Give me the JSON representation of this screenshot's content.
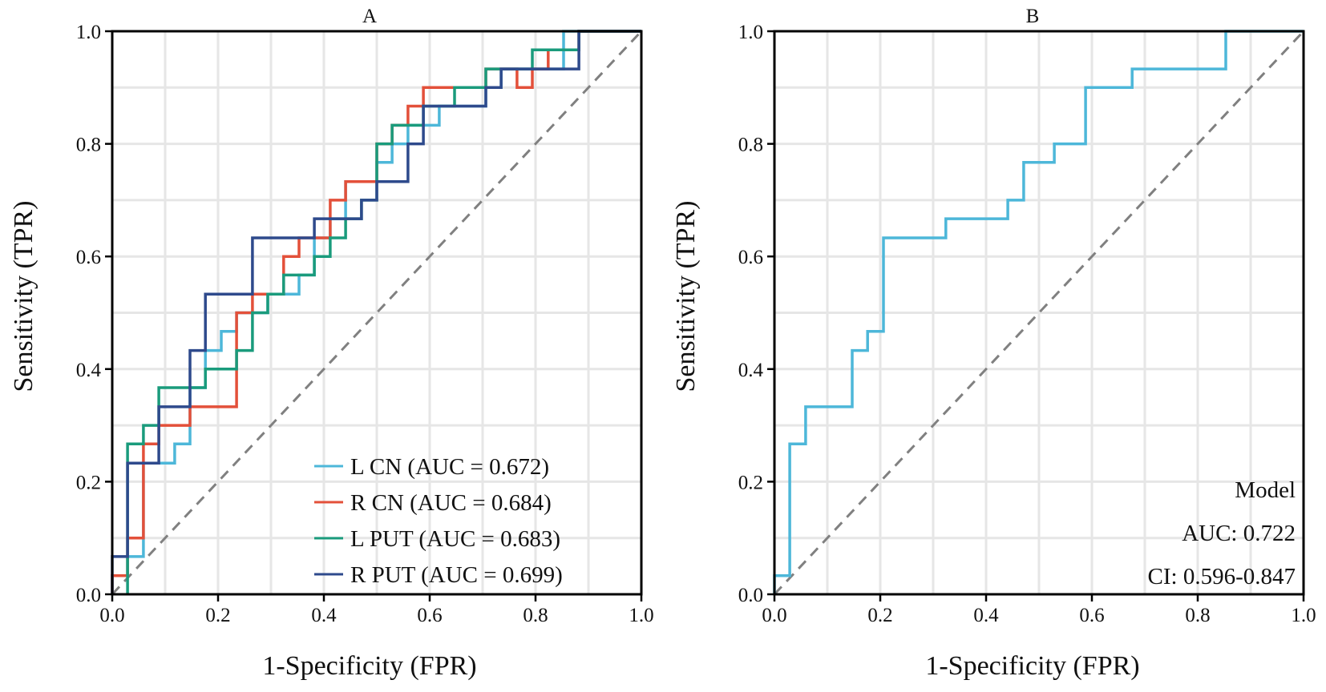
{
  "chart_data": [
    {
      "type": "line",
      "panel": "A",
      "title": "A",
      "xlabel": "1-Specificity (FPR)",
      "ylabel": "Sensitivity (TPR)",
      "xlim": [
        0,
        1
      ],
      "ylim": [
        0,
        1
      ],
      "xticks": [
        "0.0",
        "0.2",
        "0.4",
        "0.6",
        "0.8",
        "1.0"
      ],
      "yticks": [
        "0.0",
        "0.2",
        "0.4",
        "0.6",
        "0.8",
        "1.0"
      ],
      "grid": true,
      "legend_position": "bottom-right",
      "reference_line": "diagonal-dashed",
      "series": [
        {
          "name": "L CN",
          "label": "L CN (AUC = 0.672)",
          "auc": 0.672,
          "color": "#4DB7D9",
          "points": [
            [
              0,
              0
            ],
            [
              0,
              0.033
            ],
            [
              0.029,
              0.033
            ],
            [
              0.029,
              0.067
            ],
            [
              0.059,
              0.067
            ],
            [
              0.059,
              0.233
            ],
            [
              0.118,
              0.233
            ],
            [
              0.118,
              0.267
            ],
            [
              0.147,
              0.267
            ],
            [
              0.147,
              0.367
            ],
            [
              0.176,
              0.367
            ],
            [
              0.176,
              0.433
            ],
            [
              0.206,
              0.433
            ],
            [
              0.206,
              0.467
            ],
            [
              0.235,
              0.467
            ],
            [
              0.235,
              0.5
            ],
            [
              0.294,
              0.5
            ],
            [
              0.294,
              0.533
            ],
            [
              0.353,
              0.533
            ],
            [
              0.353,
              0.567
            ],
            [
              0.382,
              0.567
            ],
            [
              0.382,
              0.633
            ],
            [
              0.412,
              0.633
            ],
            [
              0.412,
              0.667
            ],
            [
              0.441,
              0.667
            ],
            [
              0.441,
              0.733
            ],
            [
              0.5,
              0.733
            ],
            [
              0.5,
              0.767
            ],
            [
              0.529,
              0.767
            ],
            [
              0.529,
              0.8
            ],
            [
              0.559,
              0.8
            ],
            [
              0.559,
              0.833
            ],
            [
              0.618,
              0.833
            ],
            [
              0.618,
              0.867
            ],
            [
              0.706,
              0.867
            ],
            [
              0.706,
              0.9
            ],
            [
              0.735,
              0.9
            ],
            [
              0.735,
              0.933
            ],
            [
              0.853,
              0.933
            ],
            [
              0.853,
              1.0
            ],
            [
              1.0,
              1.0
            ]
          ]
        },
        {
          "name": "R CN",
          "label": "R CN (AUC = 0.684)",
          "auc": 0.684,
          "color": "#E3503A",
          "points": [
            [
              0,
              0
            ],
            [
              0,
              0.033
            ],
            [
              0.029,
              0.033
            ],
            [
              0.029,
              0.1
            ],
            [
              0.059,
              0.1
            ],
            [
              0.059,
              0.267
            ],
            [
              0.088,
              0.267
            ],
            [
              0.088,
              0.3
            ],
            [
              0.147,
              0.3
            ],
            [
              0.147,
              0.333
            ],
            [
              0.235,
              0.333
            ],
            [
              0.235,
              0.5
            ],
            [
              0.265,
              0.5
            ],
            [
              0.265,
              0.533
            ],
            [
              0.324,
              0.533
            ],
            [
              0.324,
              0.6
            ],
            [
              0.353,
              0.6
            ],
            [
              0.353,
              0.633
            ],
            [
              0.412,
              0.633
            ],
            [
              0.412,
              0.7
            ],
            [
              0.441,
              0.7
            ],
            [
              0.441,
              0.733
            ],
            [
              0.5,
              0.733
            ],
            [
              0.5,
              0.8
            ],
            [
              0.529,
              0.8
            ],
            [
              0.529,
              0.833
            ],
            [
              0.559,
              0.833
            ],
            [
              0.559,
              0.867
            ],
            [
              0.588,
              0.867
            ],
            [
              0.588,
              0.9
            ],
            [
              0.706,
              0.9
            ],
            [
              0.706,
              0.933
            ],
            [
              0.765,
              0.933
            ],
            [
              0.765,
              0.9
            ],
            [
              0.794,
              0.9
            ],
            [
              0.794,
              0.933
            ],
            [
              0.824,
              0.933
            ],
            [
              0.824,
              0.967
            ],
            [
              0.882,
              0.967
            ],
            [
              0.882,
              1.0
            ],
            [
              1.0,
              1.0
            ]
          ]
        },
        {
          "name": "L PUT",
          "label": "L PUT (AUC = 0.683)",
          "auc": 0.683,
          "color": "#1A9B7C",
          "points": [
            [
              0.029,
              0
            ],
            [
              0.029,
              0.267
            ],
            [
              0.059,
              0.267
            ],
            [
              0.059,
              0.3
            ],
            [
              0.088,
              0.3
            ],
            [
              0.088,
              0.367
            ],
            [
              0.176,
              0.367
            ],
            [
              0.176,
              0.4
            ],
            [
              0.235,
              0.4
            ],
            [
              0.235,
              0.433
            ],
            [
              0.265,
              0.433
            ],
            [
              0.265,
              0.5
            ],
            [
              0.294,
              0.5
            ],
            [
              0.294,
              0.533
            ],
            [
              0.324,
              0.533
            ],
            [
              0.324,
              0.567
            ],
            [
              0.382,
              0.567
            ],
            [
              0.382,
              0.6
            ],
            [
              0.412,
              0.6
            ],
            [
              0.412,
              0.633
            ],
            [
              0.441,
              0.633
            ],
            [
              0.441,
              0.667
            ],
            [
              0.471,
              0.667
            ],
            [
              0.471,
              0.7
            ],
            [
              0.5,
              0.7
            ],
            [
              0.5,
              0.8
            ],
            [
              0.529,
              0.8
            ],
            [
              0.529,
              0.833
            ],
            [
              0.588,
              0.833
            ],
            [
              0.588,
              0.867
            ],
            [
              0.647,
              0.867
            ],
            [
              0.647,
              0.9
            ],
            [
              0.706,
              0.9
            ],
            [
              0.706,
              0.933
            ],
            [
              0.794,
              0.933
            ],
            [
              0.794,
              0.967
            ],
            [
              0.882,
              0.967
            ],
            [
              0.882,
              1.0
            ],
            [
              1.0,
              1.0
            ]
          ]
        },
        {
          "name": "R PUT",
          "label": "R PUT (AUC = 0.699)",
          "auc": 0.699,
          "color": "#2E4A8C",
          "points": [
            [
              0,
              0
            ],
            [
              0,
              0.067
            ],
            [
              0.029,
              0.067
            ],
            [
              0.029,
              0.233
            ],
            [
              0.088,
              0.233
            ],
            [
              0.088,
              0.333
            ],
            [
              0.147,
              0.333
            ],
            [
              0.147,
              0.433
            ],
            [
              0.176,
              0.433
            ],
            [
              0.176,
              0.533
            ],
            [
              0.265,
              0.533
            ],
            [
              0.265,
              0.633
            ],
            [
              0.382,
              0.633
            ],
            [
              0.382,
              0.667
            ],
            [
              0.471,
              0.667
            ],
            [
              0.471,
              0.7
            ],
            [
              0.5,
              0.7
            ],
            [
              0.5,
              0.733
            ],
            [
              0.559,
              0.733
            ],
            [
              0.559,
              0.8
            ],
            [
              0.588,
              0.8
            ],
            [
              0.588,
              0.867
            ],
            [
              0.706,
              0.867
            ],
            [
              0.706,
              0.9
            ],
            [
              0.735,
              0.9
            ],
            [
              0.735,
              0.933
            ],
            [
              0.882,
              0.933
            ],
            [
              0.882,
              1.0
            ],
            [
              1.0,
              1.0
            ]
          ]
        }
      ]
    },
    {
      "type": "line",
      "panel": "B",
      "title": "B",
      "xlabel": "1-Specificity (FPR)",
      "ylabel": "Sensitivity (TPR)",
      "xlim": [
        0,
        1
      ],
      "ylim": [
        0,
        1
      ],
      "xticks": [
        "0.0",
        "0.2",
        "0.4",
        "0.6",
        "0.8",
        "1.0"
      ],
      "yticks": [
        "0.0",
        "0.2",
        "0.4",
        "0.6",
        "0.8",
        "1.0"
      ],
      "grid": true,
      "reference_line": "diagonal-dashed",
      "annotation": {
        "lines": [
          "Model",
          "AUC: 0.722",
          "CI: 0.596-0.847"
        ],
        "position": "bottom-right"
      },
      "series": [
        {
          "name": "Model",
          "auc": 0.722,
          "ci": "0.596-0.847",
          "color": "#4DB7D9",
          "points": [
            [
              0,
              0
            ],
            [
              0,
              0.033
            ],
            [
              0.029,
              0.033
            ],
            [
              0.029,
              0.267
            ],
            [
              0.059,
              0.267
            ],
            [
              0.059,
              0.333
            ],
            [
              0.147,
              0.333
            ],
            [
              0.147,
              0.433
            ],
            [
              0.176,
              0.433
            ],
            [
              0.176,
              0.467
            ],
            [
              0.206,
              0.467
            ],
            [
              0.206,
              0.633
            ],
            [
              0.324,
              0.633
            ],
            [
              0.324,
              0.667
            ],
            [
              0.441,
              0.667
            ],
            [
              0.441,
              0.7
            ],
            [
              0.471,
              0.7
            ],
            [
              0.471,
              0.767
            ],
            [
              0.529,
              0.767
            ],
            [
              0.529,
              0.8
            ],
            [
              0.588,
              0.8
            ],
            [
              0.588,
              0.9
            ],
            [
              0.676,
              0.9
            ],
            [
              0.676,
              0.933
            ],
            [
              0.853,
              0.933
            ],
            [
              0.853,
              1.0
            ],
            [
              1.0,
              1.0
            ]
          ]
        }
      ]
    }
  ],
  "colors": {
    "grid": "#E6E6E6",
    "axis": "#000000",
    "diagonal": "#808080"
  }
}
